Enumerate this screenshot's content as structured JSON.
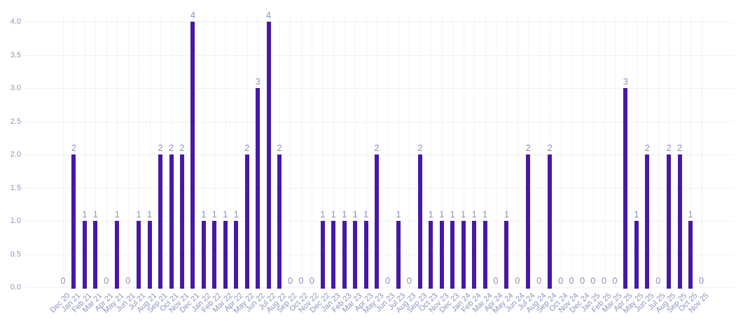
{
  "chart_data": {
    "type": "bar",
    "title": "",
    "xlabel": "",
    "ylabel": "",
    "categories": [
      "Dec 20",
      "Jan 21",
      "Feb 21",
      "Mar 21",
      "Apr 21",
      "May 21",
      "Jun 21",
      "Jul 21",
      "Aug 21",
      "Sep 21",
      "Oct 21",
      "Nov 21",
      "Dec 21",
      "Jan 22",
      "Feb 22",
      "Mar 22",
      "Apr 22",
      "May 22",
      "Jun 22",
      "Jul 22",
      "Aug 22",
      "Sep 22",
      "Oct 22",
      "Nov 22",
      "Dec 22",
      "Jan 23",
      "Feb 23",
      "Mar 23",
      "Apr 23",
      "May 23",
      "Jun 23",
      "Jul 23",
      "Aug 23",
      "Sep 23",
      "Oct 23",
      "Nov 23",
      "Dec 23",
      "Jan 24",
      "Feb 24",
      "Mar 24",
      "Apr 24",
      "May 24",
      "Jun 24",
      "Jul 24",
      "Aug 24",
      "Sep 24",
      "Oct 24",
      "Nov 24",
      "Dec 24",
      "Jan 25",
      "Feb 25",
      "Mar 25",
      "Apr 25",
      "May 25",
      "Jun 25",
      "Jul 25",
      "Aug 25",
      "Sep 25",
      "Oct 25",
      "Nov 25"
    ],
    "values": [
      0,
      2,
      1,
      1,
      0,
      1,
      0,
      1,
      1,
      2,
      2,
      2,
      4,
      1,
      1,
      1,
      1,
      2,
      3,
      4,
      2,
      0,
      0,
      0,
      1,
      1,
      1,
      1,
      1,
      2,
      0,
      1,
      0,
      2,
      1,
      1,
      1,
      1,
      1,
      1,
      0,
      1,
      0,
      2,
      0,
      2,
      0,
      0,
      0,
      0,
      0,
      0,
      3,
      1,
      2,
      0,
      2,
      2,
      1,
      0
    ],
    "value_labels_shown": true,
    "y_ticks": [
      "0.0",
      "0.5",
      "1.0",
      "1.5",
      "2.0",
      "2.5",
      "3.0",
      "3.5",
      "4.0"
    ],
    "ylim": [
      0,
      4
    ],
    "y_tick_step": 0.5,
    "grid": "dotted horizontal and vertical",
    "legend_position": "none",
    "colors": {
      "bar": "#4619a6",
      "tick_label": "#8e92be",
      "value_label": "#8e92be",
      "grid_horizontal": "#e2e2f1",
      "grid_vertical": "#e7e7f4",
      "background": "#ffffff"
    }
  }
}
